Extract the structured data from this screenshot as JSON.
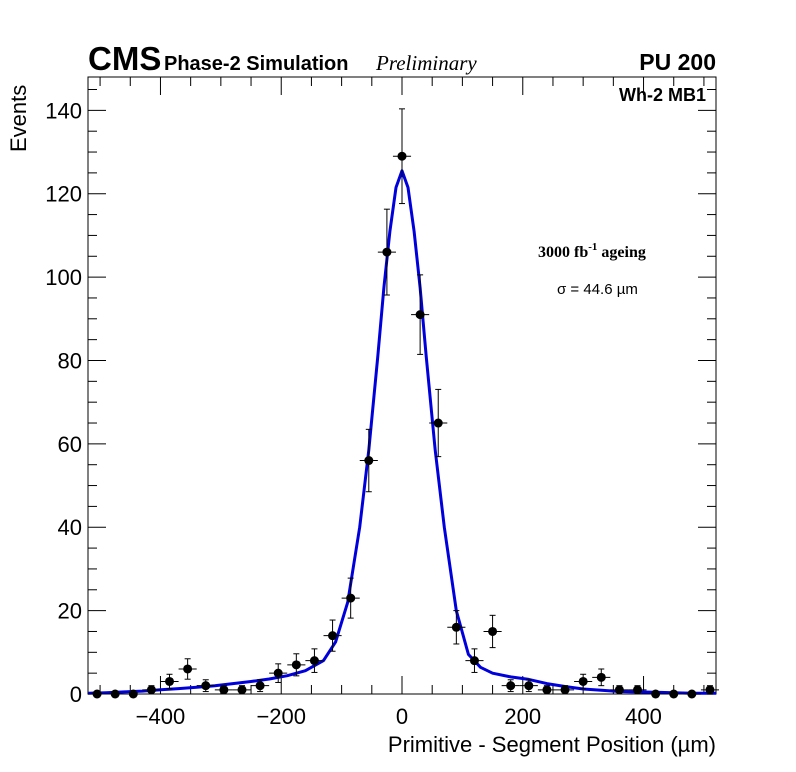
{
  "header": {
    "experiment": "CMS",
    "subtitle": "Phase-2 Simulation",
    "status": "Preliminary",
    "pileup": "PU 200"
  },
  "annotations": {
    "station": "Wh-2 MB1",
    "ageing_prefix": "3000 fb",
    "ageing_exponent": "-1",
    "ageing_suffix": " ageing",
    "sigma": "σ = 44.6 µm"
  },
  "chart_data": {
    "type": "scatter",
    "title": "",
    "xlabel": "Primitive - Segment Position (µm)",
    "ylabel": "Events",
    "xlim": [
      -520,
      520
    ],
    "ylim": [
      0,
      148
    ],
    "x_ticks": [
      -400,
      -200,
      0,
      200,
      400
    ],
    "x_tick_labels": [
      "−400",
      "−200",
      "0",
      "200",
      "400"
    ],
    "y_ticks": [
      0,
      20,
      40,
      60,
      80,
      100,
      120,
      140
    ],
    "y_tick_labels": [
      "0",
      "20",
      "40",
      "60",
      "80",
      "100",
      "120",
      "140"
    ],
    "bin_half_width": 15,
    "series": [
      {
        "name": "Simulation",
        "color": "#000000",
        "x": [
          -505,
          -475,
          -445,
          -415,
          -385,
          -355,
          -325,
          -295,
          -265,
          -235,
          -205,
          -175,
          -145,
          -115,
          -85,
          -55,
          -25,
          0,
          30,
          60,
          90,
          120,
          150,
          180,
          210,
          240,
          270,
          300,
          330,
          360,
          390,
          420,
          450,
          480,
          510
        ],
        "y": [
          0,
          0,
          0,
          1,
          3,
          6,
          2,
          1,
          1,
          2,
          5,
          7,
          8,
          14,
          23,
          56,
          106,
          129,
          91,
          65,
          16,
          8,
          15,
          2,
          2,
          1,
          1,
          3,
          4,
          1,
          1,
          0,
          0,
          0,
          1
        ]
      },
      {
        "name": "Fit",
        "color": "#0000dd",
        "x": [
          -520,
          -490,
          -460,
          -430,
          -400,
          -370,
          -340,
          -310,
          -280,
          -250,
          -220,
          -190,
          -160,
          -130,
          -110,
          -90,
          -70,
          -55,
          -40,
          -30,
          -20,
          -10,
          0,
          10,
          20,
          30,
          40,
          55,
          70,
          90,
          110,
          130,
          150,
          180,
          210,
          240,
          270,
          300,
          330,
          360,
          390,
          420,
          450,
          480,
          520
        ],
        "y": [
          0.2,
          0.3,
          0.5,
          0.7,
          1.0,
          1.3,
          1.6,
          2.0,
          2.5,
          3.0,
          3.6,
          4.4,
          5.6,
          8.0,
          12.5,
          22.0,
          40.0,
          58.5,
          81.0,
          97.5,
          111.0,
          121.5,
          125.5,
          121.5,
          111.0,
          97.5,
          81.0,
          58.5,
          40.0,
          20.0,
          9.5,
          6.4,
          5.0,
          4.1,
          3.5,
          2.5,
          1.8,
          1.2,
          0.9,
          0.6,
          0.5,
          0.4,
          0.3,
          0.2,
          0.2
        ]
      }
    ]
  }
}
